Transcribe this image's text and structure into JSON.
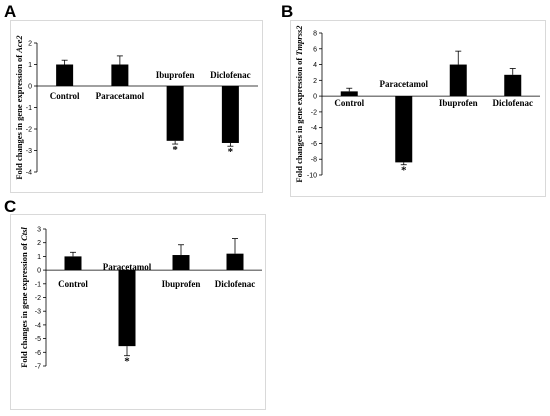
{
  "chart_data": [
    {
      "panel": "A",
      "type": "bar",
      "categories": [
        "Control",
        "Paracetamol",
        "Ibuprofen",
        "Diclofenac"
      ],
      "values": [
        1.0,
        1.0,
        -2.55,
        -2.65
      ],
      "errors": [
        0.2,
        0.4,
        0.15,
        0.15
      ],
      "significance": [
        "",
        "",
        "*",
        "*"
      ],
      "ylabel_prefix": "Fold changes in gene expression of ",
      "ylabel_gene": "Ace2",
      "ylim": [
        -4,
        2
      ],
      "yticks": [
        -4,
        -3,
        -2,
        -1,
        0,
        1,
        2
      ],
      "grid": false,
      "bar_color": "#000000"
    },
    {
      "panel": "B",
      "type": "bar",
      "categories": [
        "Control",
        "Paracetamol",
        "Ibuprofen",
        "Diclofenac"
      ],
      "values": [
        0.6,
        -8.4,
        4.0,
        2.7
      ],
      "errors": [
        0.4,
        0.3,
        1.7,
        0.8
      ],
      "significance": [
        "",
        "*",
        "",
        ""
      ],
      "ylabel_prefix": "Fold changes in gene expression of ",
      "ylabel_gene": "Tmprss2",
      "ylim": [
        -10,
        8
      ],
      "yticks": [
        -10,
        -8,
        -6,
        -4,
        -2,
        0,
        2,
        4,
        6,
        8
      ],
      "grid": false,
      "bar_color": "#000000"
    },
    {
      "panel": "C",
      "type": "bar",
      "categories": [
        "Control",
        "Paracetamol",
        "Ibuprofen",
        "Diclofenac"
      ],
      "values": [
        1.0,
        -5.55,
        1.1,
        1.2
      ],
      "errors": [
        0.3,
        0.7,
        0.75,
        1.1
      ],
      "significance": [
        "",
        "*",
        "",
        ""
      ],
      "ylabel_prefix": "Fold changes in gene expression of ",
      "ylabel_gene": "Ctsl",
      "ylim": [
        -7,
        3
      ],
      "yticks": [
        -7,
        -6,
        -5,
        -4,
        -3,
        -2,
        -1,
        0,
        1,
        2,
        3
      ],
      "grid": false,
      "bar_color": "#000000"
    }
  ]
}
